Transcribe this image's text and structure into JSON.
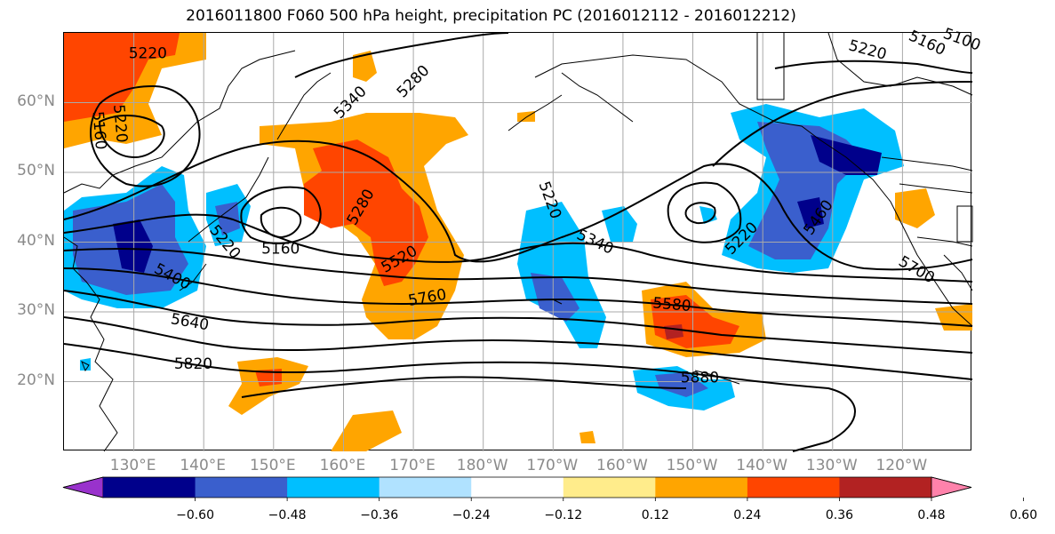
{
  "title": "2016011800 F060 500 hPa height, precipitation PC (2016012112 - 2016012212)",
  "lat_labels": [
    {
      "text": "60°N",
      "lat": 60
    },
    {
      "text": "50°N",
      "lat": 50
    },
    {
      "text": "40°N",
      "lat": 40
    },
    {
      "text": "30°N",
      "lat": 30
    },
    {
      "text": "20°N",
      "lat": 20
    }
  ],
  "lon_labels": [
    {
      "text": "130°E",
      "lon": 130
    },
    {
      "text": "140°E",
      "lon": 140
    },
    {
      "text": "150°E",
      "lon": 150
    },
    {
      "text": "160°E",
      "lon": 160
    },
    {
      "text": "170°E",
      "lon": 170
    },
    {
      "text": "180°W",
      "lon": 180
    },
    {
      "text": "170°W",
      "lon": 190
    },
    {
      "text": "160°W",
      "lon": 200
    },
    {
      "text": "150°W",
      "lon": 210
    },
    {
      "text": "140°W",
      "lon": 220
    },
    {
      "text": "130°W",
      "lon": 230
    },
    {
      "text": "120°W",
      "lon": 240
    }
  ],
  "map_extent": {
    "lon_min": 120,
    "lon_max": 250,
    "lat_min": 10,
    "lat_max": 70
  },
  "contour_labels": [
    {
      "text": "5220",
      "lon": 132.0,
      "lat": 67.0,
      "rot": 0
    },
    {
      "text": "5220",
      "lon": 128.0,
      "lat": 57.0,
      "rot": 85
    },
    {
      "text": "5160",
      "lon": 125.0,
      "lat": 56.0,
      "rot": 85
    },
    {
      "text": "5340",
      "lon": 161.0,
      "lat": 60.0,
      "rot": -45
    },
    {
      "text": "5280",
      "lon": 170.0,
      "lat": 63.0,
      "rot": -45
    },
    {
      "text": "5280",
      "lon": 162.5,
      "lat": 45.0,
      "rot": -60
    },
    {
      "text": "5160",
      "lon": 151.0,
      "lat": 39.0,
      "rot": 0
    },
    {
      "text": "5220",
      "lon": 143.0,
      "lat": 40.0,
      "rot": 50
    },
    {
      "text": "5400",
      "lon": 135.5,
      "lat": 35.0,
      "rot": 28
    },
    {
      "text": "5520",
      "lon": 168.0,
      "lat": 37.5,
      "rot": -30
    },
    {
      "text": "5760",
      "lon": 172.0,
      "lat": 32.0,
      "rot": -10
    },
    {
      "text": "5640",
      "lon": 138.0,
      "lat": 28.5,
      "rot": 10
    },
    {
      "text": "5820",
      "lon": 138.5,
      "lat": 22.5,
      "rot": 0
    },
    {
      "text": "5220",
      "lon": 189.5,
      "lat": 46.0,
      "rot": 70
    },
    {
      "text": "5340",
      "lon": 196.0,
      "lat": 40.0,
      "rot": 25
    },
    {
      "text": "5580",
      "lon": 207.0,
      "lat": 31.0,
      "rot": 5
    },
    {
      "text": "5880",
      "lon": 211.0,
      "lat": 20.5,
      "rot": 0
    },
    {
      "text": "5220",
      "lon": 217.0,
      "lat": 40.5,
      "rot": -45
    },
    {
      "text": "5460",
      "lon": 228.0,
      "lat": 43.5,
      "rot": -55
    },
    {
      "text": "5700",
      "lon": 242.0,
      "lat": 36.0,
      "rot": 30
    },
    {
      "text": "5220",
      "lon": 235.0,
      "lat": 67.5,
      "rot": 15
    },
    {
      "text": "5160",
      "lon": 243.5,
      "lat": 68.5,
      "rot": 25
    },
    {
      "text": "5100",
      "lon": 248.5,
      "lat": 69.0,
      "rot": 20
    }
  ],
  "colorbar": {
    "colors": [
      "#9932cc",
      "#00008b",
      "#3a5fcd",
      "#00bfff",
      "#b0e2ff",
      "#ffffff",
      "#ffec8b",
      "#ffa500",
      "#ff4500",
      "#b22222",
      "#ff82ab"
    ],
    "tick_labels": [
      "−0.60",
      "−0.48",
      "−0.36",
      "−0.24",
      "−0.12",
      "0.12",
      "0.24",
      "0.36",
      "0.48",
      "0.60"
    ]
  },
  "precip_levels_colors": {
    "neg_strong": "#00008b",
    "neg_mid": "#3a5fcd",
    "neg_weak": "#00bfff",
    "pos_weak": "#ffa500",
    "pos_mid": "#ff4500",
    "pos_strong": "#b22222",
    "pos_light": "#ffec8b"
  }
}
